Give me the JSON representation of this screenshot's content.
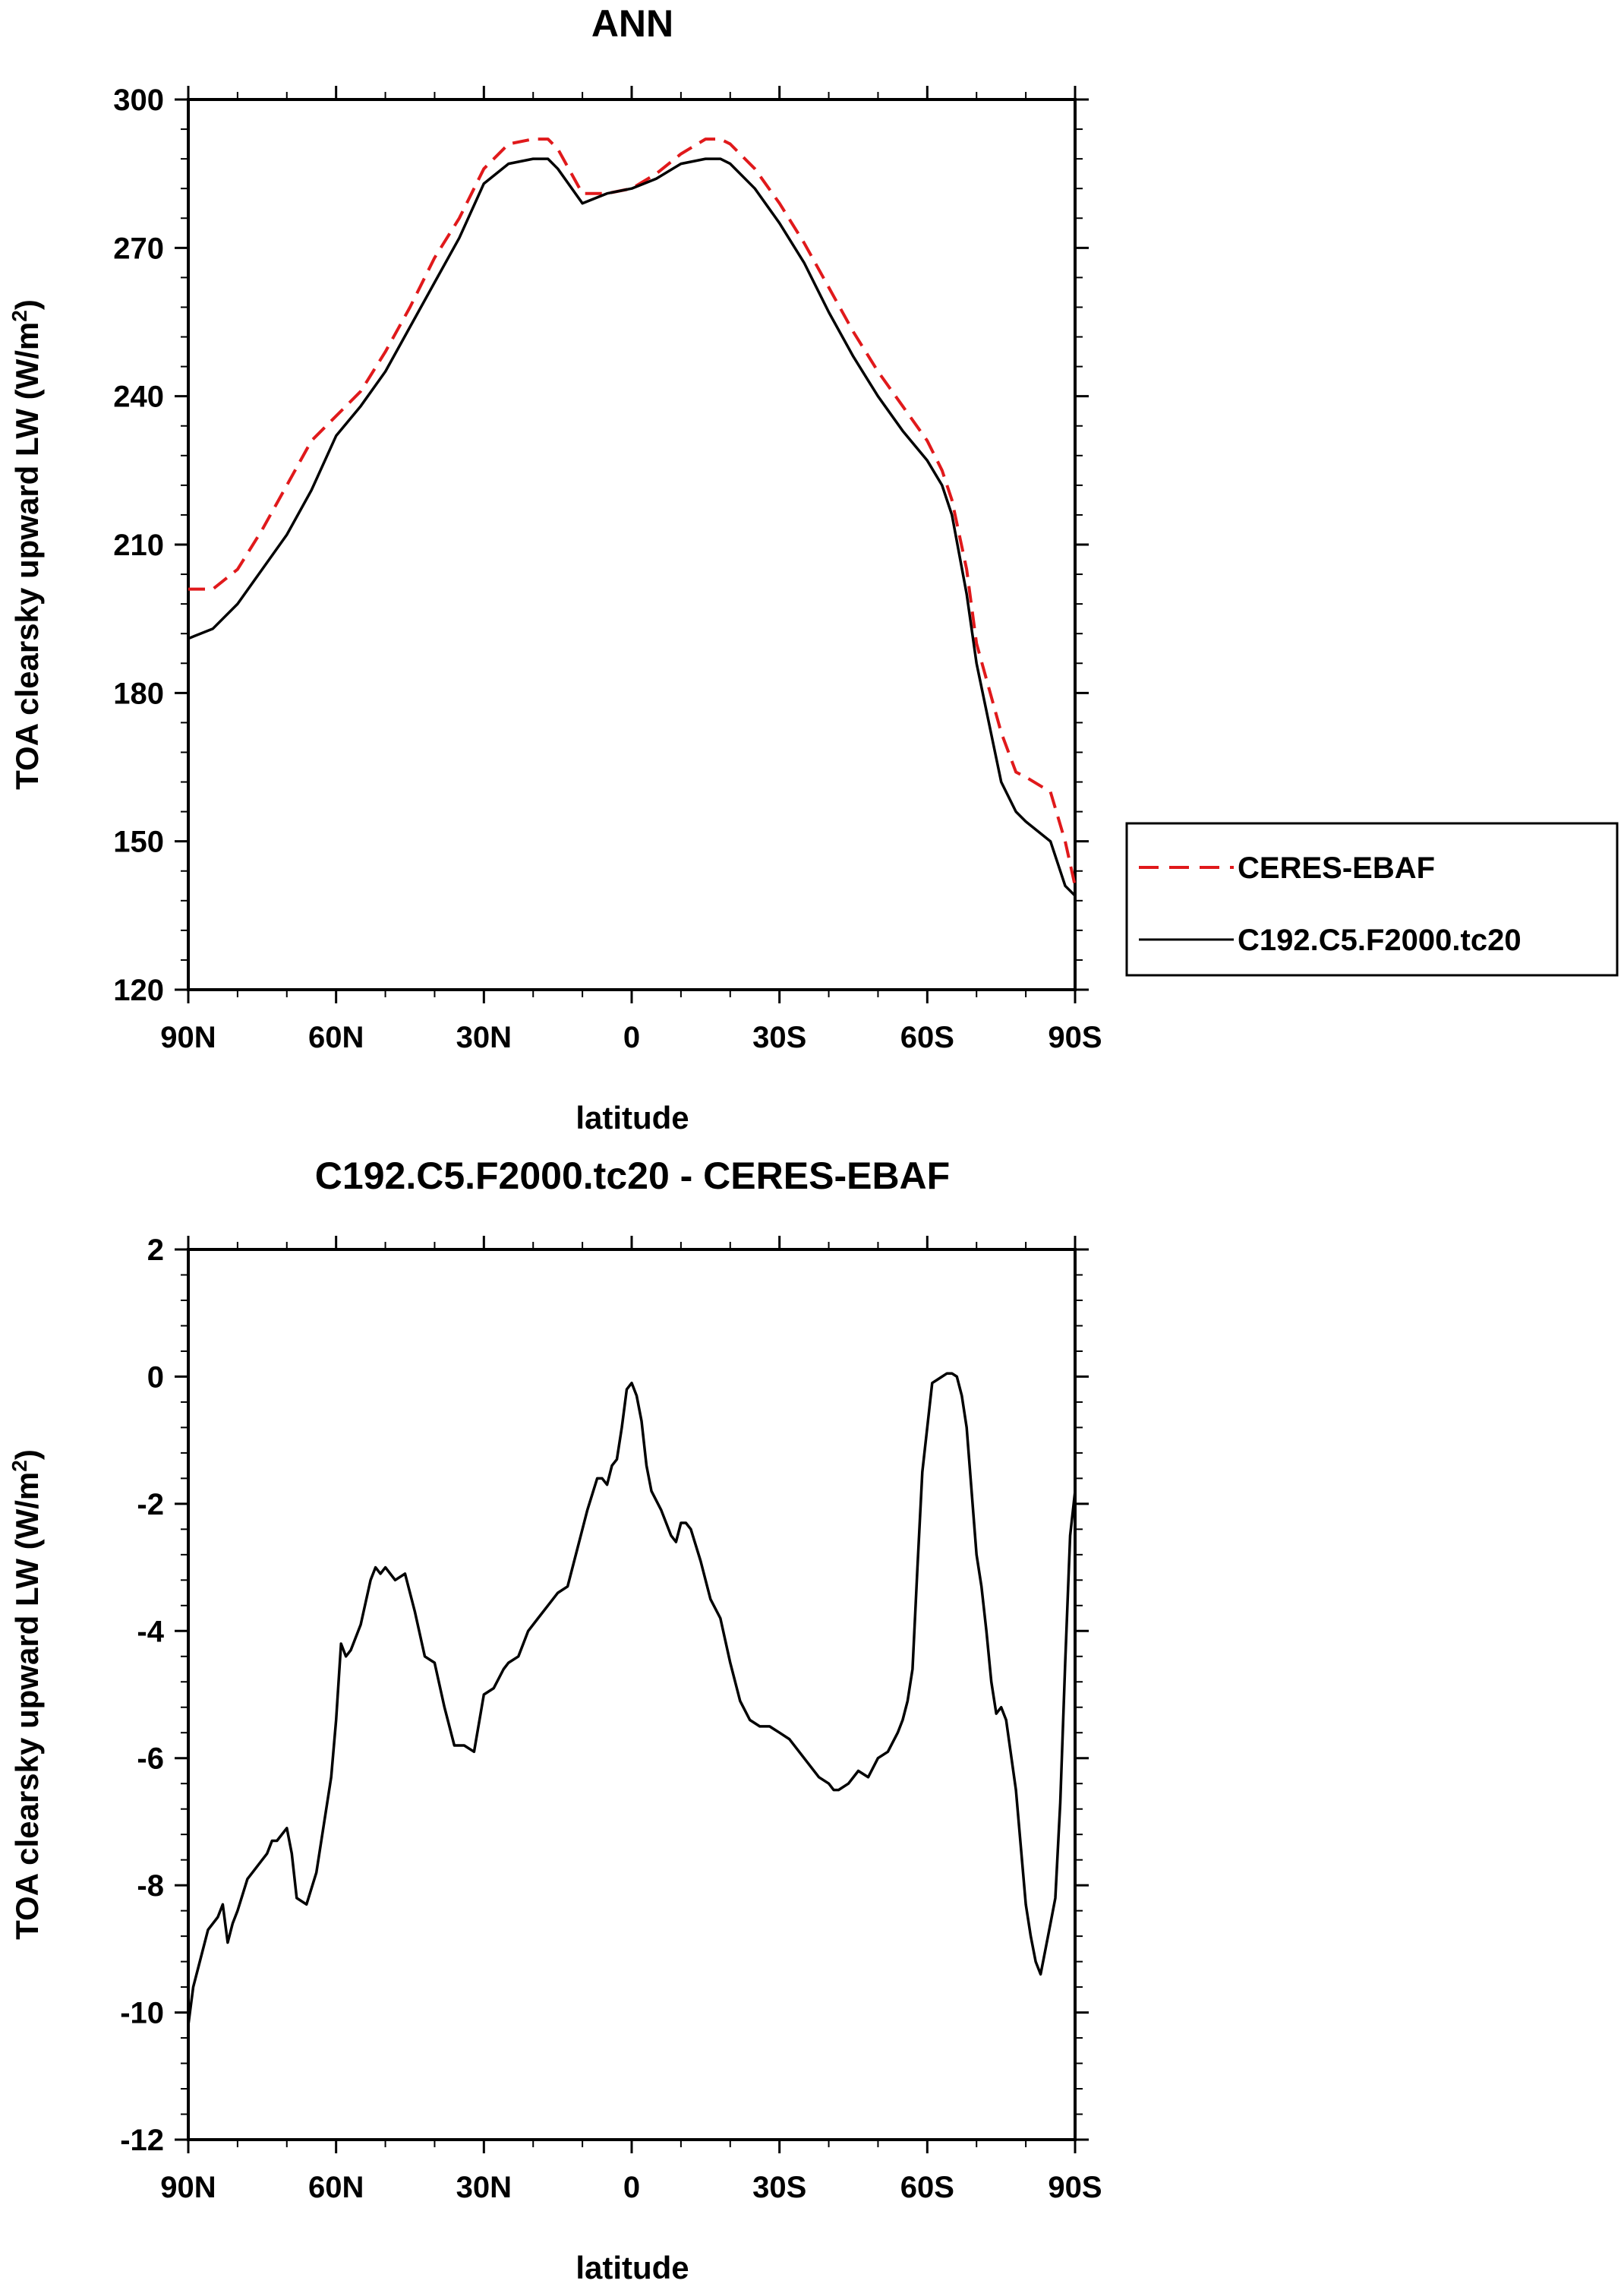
{
  "chart_data": [
    {
      "type": "line",
      "title": "ANN",
      "xlabel": "latitude",
      "ylabel": "TOA clearsky upward LW (W/m",
      "ylabel_sup": "2",
      "ylabel_close": ")",
      "xlim": [
        90,
        -90
      ],
      "ylim": [
        120,
        300
      ],
      "yticks": [
        120,
        150,
        180,
        210,
        240,
        270,
        300
      ],
      "xticks": [
        90,
        60,
        30,
        0,
        -30,
        -60,
        -90
      ],
      "xtick_labels": [
        "90N",
        "60N",
        "30N",
        "0",
        "30S",
        "60S",
        "90S"
      ],
      "legend_position": "right",
      "series": [
        {
          "name": "CERES-EBAF",
          "color": "#e0191b",
          "dash": "dashed",
          "x": [
            90,
            85,
            80,
            75,
            70,
            65,
            60,
            55,
            50,
            45,
            40,
            35,
            30,
            25,
            20,
            17,
            15,
            10,
            5,
            0,
            -5,
            -10,
            -15,
            -18,
            -20,
            -25,
            -30,
            -35,
            -40,
            -45,
            -50,
            -55,
            -60,
            -63,
            -65,
            -68,
            -70,
            -75,
            -78,
            -80,
            -85,
            -88,
            -90
          ],
          "y": [
            201,
            201,
            205,
            213,
            222,
            231,
            236,
            241,
            249,
            258,
            268,
            276,
            286,
            291,
            292,
            292,
            290,
            281,
            281,
            282,
            285,
            289,
            292,
            292,
            291,
            286,
            279,
            271,
            262,
            253,
            245,
            238,
            231,
            225,
            219,
            205,
            190,
            172,
            164,
            163,
            160,
            150,
            141
          ]
        },
        {
          "name": "C192.C5.F2000.tc20",
          "color": "#000000",
          "dash": "solid",
          "x": [
            90,
            85,
            80,
            75,
            70,
            65,
            60,
            55,
            50,
            45,
            40,
            35,
            30,
            25,
            20,
            17,
            15,
            10,
            5,
            0,
            -5,
            -10,
            -15,
            -18,
            -20,
            -25,
            -30,
            -35,
            -40,
            -45,
            -50,
            -55,
            -60,
            -63,
            -65,
            -68,
            -70,
            -75,
            -78,
            -80,
            -85,
            -88,
            -90
          ],
          "y": [
            191,
            193,
            198,
            205,
            212,
            221,
            232,
            238,
            245,
            254,
            263,
            272,
            283,
            287,
            288,
            288,
            286,
            279,
            281,
            282,
            284,
            287,
            288,
            288,
            287,
            282,
            275,
            267,
            257,
            248,
            240,
            233,
            227,
            222,
            216,
            200,
            186,
            162,
            156,
            154,
            150,
            141,
            139
          ]
        }
      ]
    },
    {
      "type": "line",
      "title": "C192.C5.F2000.tc20 - CERES-EBAF",
      "xlabel": "latitude",
      "ylabel": "TOA clearsky upward LW (W/m",
      "ylabel_sup": "2",
      "ylabel_close": ")",
      "xlim": [
        90,
        -90
      ],
      "ylim": [
        -12,
        2
      ],
      "yticks": [
        -12,
        -10,
        -8,
        -6,
        -4,
        -2,
        0,
        2
      ],
      "xticks": [
        90,
        60,
        30,
        0,
        -30,
        -60,
        -90
      ],
      "xtick_labels": [
        "90N",
        "60N",
        "30N",
        "0",
        "30S",
        "60S",
        "90S"
      ],
      "series": [
        {
          "color": "#000000",
          "dash": "solid",
          "x": [
            90,
            89,
            88,
            86,
            84,
            83,
            82,
            81,
            80,
            78,
            77,
            75,
            74,
            73,
            72,
            70,
            69,
            68,
            66,
            64,
            61,
            60,
            59,
            58,
            57,
            55,
            53,
            52,
            51,
            50,
            48,
            46,
            44,
            42,
            40,
            38,
            36,
            34,
            32,
            30,
            28,
            26,
            25,
            23,
            21,
            19,
            17,
            15,
            13,
            11,
            9,
            7,
            6,
            5,
            4,
            3,
            2,
            1,
            0,
            -1,
            -2,
            -3,
            -4,
            -6,
            -8,
            -9,
            -10,
            -11,
            -12,
            -14,
            -16,
            -18,
            -20,
            -22,
            -24,
            -26,
            -28,
            -30,
            -32,
            -34,
            -36,
            -38,
            -40,
            -41,
            -42,
            -44,
            -46,
            -48,
            -50,
            -52,
            -54,
            -55,
            -56,
            -57,
            -58,
            -59,
            -60,
            -61,
            -62,
            -63,
            -64,
            -65,
            -66,
            -67,
            -68,
            -70,
            -71,
            -72,
            -73,
            -74,
            -75,
            -76,
            -78,
            -80,
            -81,
            -82,
            -83,
            -84,
            -85,
            -86,
            -87,
            -88,
            -89,
            -90
          ],
          "y": [
            -10.2,
            -9.6,
            -9.3,
            -8.7,
            -8.5,
            -8.3,
            -8.9,
            -8.6,
            -8.4,
            -7.9,
            -7.8,
            -7.6,
            -7.5,
            -7.3,
            -7.3,
            -7.1,
            -7.5,
            -8.2,
            -8.3,
            -7.8,
            -6.3,
            -5.4,
            -4.2,
            -4.4,
            -4.3,
            -3.9,
            -3.2,
            -3.0,
            -3.1,
            -3.0,
            -3.2,
            -3.1,
            -3.7,
            -4.4,
            -4.5,
            -5.2,
            -5.8,
            -5.8,
            -5.9,
            -5.0,
            -4.9,
            -4.6,
            -4.5,
            -4.4,
            -4.0,
            -3.8,
            -3.6,
            -3.4,
            -3.3,
            -2.7,
            -2.1,
            -1.6,
            -1.6,
            -1.7,
            -1.4,
            -1.3,
            -0.8,
            -0.2,
            -0.1,
            -0.3,
            -0.7,
            -1.4,
            -1.8,
            -2.1,
            -2.5,
            -2.6,
            -2.3,
            -2.3,
            -2.4,
            -2.9,
            -3.5,
            -3.8,
            -4.5,
            -5.1,
            -5.4,
            -5.5,
            -5.5,
            -5.6,
            -5.7,
            -5.9,
            -6.1,
            -6.3,
            -6.4,
            -6.5,
            -6.5,
            -6.4,
            -6.2,
            -6.3,
            -6.0,
            -5.9,
            -5.6,
            -5.4,
            -5.1,
            -4.6,
            -3.0,
            -1.5,
            -0.8,
            -0.1,
            -0.05,
            0.0,
            0.05,
            0.05,
            0.0,
            -0.3,
            -0.8,
            -2.8,
            -3.3,
            -4.0,
            -4.8,
            -5.3,
            -5.2,
            -5.4,
            -6.5,
            -8.3,
            -8.8,
            -9.2,
            -9.4,
            -9.0,
            -8.6,
            -8.2,
            -6.7,
            -4.5,
            -2.5,
            -1.8
          ]
        }
      ]
    }
  ]
}
